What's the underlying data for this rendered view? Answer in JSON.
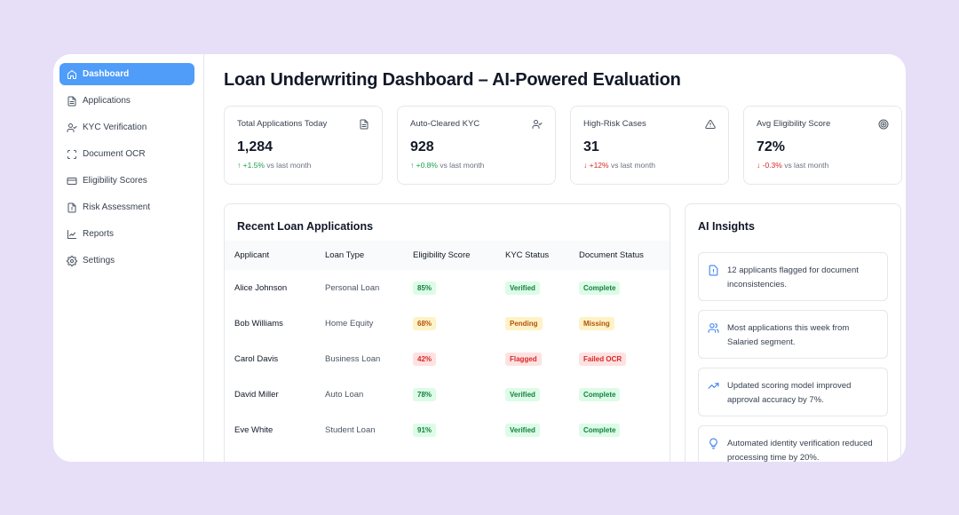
{
  "sidebar": {
    "items": [
      {
        "label": "Dashboard",
        "icon": "home-icon"
      },
      {
        "label": "Applications",
        "icon": "file-icon"
      },
      {
        "label": "KYC Verification",
        "icon": "user-check-icon"
      },
      {
        "label": "Document OCR",
        "icon": "scan-icon"
      },
      {
        "label": "Eligibility Scores",
        "icon": "card-icon"
      },
      {
        "label": "Risk Assessment",
        "icon": "file-warning-icon"
      },
      {
        "label": "Reports",
        "icon": "chart-line-icon"
      },
      {
        "label": "Settings",
        "icon": "gear-icon"
      }
    ],
    "active_index": 0,
    "accent": "#4f9cf9"
  },
  "page": {
    "title": "Loan Underwriting Dashboard – AI-Powered Evaluation"
  },
  "stats": [
    {
      "label": "Total Applications Today",
      "value": "1,284",
      "delta": "↑ +1.5%",
      "delta_suffix": " vs last month",
      "trend": "up",
      "icon": "document-icon"
    },
    {
      "label": "Auto-Cleared KYC",
      "value": "928",
      "delta": "↑ +0.8%",
      "delta_suffix": " vs last month",
      "trend": "up",
      "icon": "user-check-icon"
    },
    {
      "label": "High-Risk Cases",
      "value": "31",
      "delta": "↓ +12%",
      "delta_suffix": " vs last month",
      "trend": "down",
      "icon": "warning-icon"
    },
    {
      "label": "Avg Eligibility Score",
      "value": "72%",
      "delta": "↓ -0.3%",
      "delta_suffix": " vs last month",
      "trend": "down",
      "icon": "target-icon"
    }
  ],
  "applications": {
    "title": "Recent Loan Applications",
    "columns": [
      "Applicant",
      "Loan Type",
      "Eligibility Score",
      "KYC Status",
      "Document Status"
    ],
    "rows": [
      {
        "name": "Alice Johnson",
        "type": "Personal Loan",
        "score": "85%",
        "score_tone": "green",
        "kyc": "Verified",
        "kyc_tone": "green",
        "doc": "Complete",
        "doc_tone": "green"
      },
      {
        "name": "Bob Williams",
        "type": "Home Equity",
        "score": "68%",
        "score_tone": "amber",
        "kyc": "Pending",
        "kyc_tone": "amber",
        "doc": "Missing",
        "doc_tone": "amber"
      },
      {
        "name": "Carol Davis",
        "type": "Business Loan",
        "score": "42%",
        "score_tone": "red",
        "kyc": "Flagged",
        "kyc_tone": "red",
        "doc": "Failed OCR",
        "doc_tone": "red"
      },
      {
        "name": "David Miller",
        "type": "Auto Loan",
        "score": "78%",
        "score_tone": "green",
        "kyc": "Verified",
        "kyc_tone": "green",
        "doc": "Complete",
        "doc_tone": "green"
      },
      {
        "name": "Eve White",
        "type": "Student Loan",
        "score": "91%",
        "score_tone": "green",
        "kyc": "Verified",
        "kyc_tone": "green",
        "doc": "Complete",
        "doc_tone": "green"
      }
    ]
  },
  "insights": {
    "title": "AI Insights",
    "items": [
      {
        "text": "12 applicants flagged for document inconsistencies.",
        "icon": "file-alert-icon"
      },
      {
        "text": "Most applications this week from Salaried segment.",
        "icon": "users-icon"
      },
      {
        "text": "Updated scoring model improved approval accuracy by 7%.",
        "icon": "trending-up-icon"
      },
      {
        "text": "Automated identity verification reduced processing time by 20%.",
        "icon": "lightbulb-icon"
      }
    ],
    "accent": "#3b82f6"
  }
}
